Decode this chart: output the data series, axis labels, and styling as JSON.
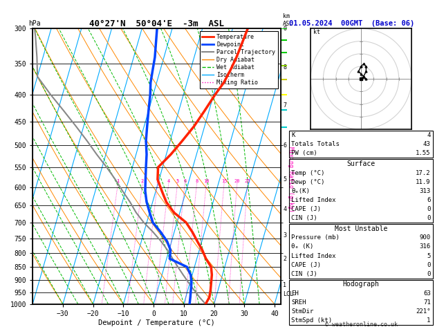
{
  "title": "40°27'N  50°04'E  -3m  ASL",
  "date_str": "01.05.2024  00GMT  (Base: 06)",
  "xlabel": "Dewpoint / Temperature (°C)",
  "pressure_levels": [
    300,
    350,
    400,
    450,
    500,
    550,
    600,
    650,
    700,
    750,
    800,
    850,
    900,
    950,
    1000
  ],
  "pmin": 300,
  "pmax": 1000,
  "temp_profile_p": [
    300,
    340,
    360,
    380,
    400,
    430,
    460,
    490,
    520,
    550,
    580,
    610,
    640,
    670,
    700,
    730,
    760,
    790,
    820,
    850,
    880,
    910,
    940,
    970,
    1000
  ],
  "temp_profile_t": [
    5.0,
    4.0,
    3.2,
    2.2,
    0.5,
    -1.5,
    -3.5,
    -6.0,
    -8.5,
    -11.5,
    -10.5,
    -8.0,
    -5.5,
    -2.0,
    3.0,
    6.0,
    8.5,
    11.0,
    13.0,
    15.5,
    16.5,
    17.0,
    17.5,
    17.8,
    17.2
  ],
  "dewp_profile_p": [
    300,
    340,
    360,
    380,
    400,
    430,
    460,
    490,
    520,
    550,
    580,
    610,
    640,
    670,
    700,
    730,
    760,
    790,
    820,
    850,
    880,
    910,
    940,
    970,
    1000
  ],
  "dewp_profile_t": [
    -25.0,
    -23.0,
    -22.5,
    -22.0,
    -21.0,
    -20.0,
    -19.0,
    -18.0,
    -16.5,
    -15.5,
    -14.5,
    -13.5,
    -12.0,
    -10.0,
    -8.0,
    -4.5,
    -1.5,
    0.5,
    1.0,
    7.5,
    9.5,
    10.5,
    11.0,
    11.5,
    11.9
  ],
  "parcel_profile_p": [
    1000,
    970,
    940,
    910,
    880,
    850,
    820,
    790,
    760,
    730,
    700,
    670,
    640,
    610,
    580,
    550,
    520,
    490,
    460,
    430,
    400,
    370,
    340,
    310,
    300
  ],
  "parcel_profile_t": [
    17.2,
    14.5,
    12.0,
    9.5,
    7.0,
    4.5,
    2.0,
    -0.5,
    -3.5,
    -7.0,
    -11.0,
    -14.5,
    -17.5,
    -21.0,
    -24.5,
    -28.5,
    -33.0,
    -37.5,
    -42.5,
    -48.0,
    -54.0,
    -60.0,
    -62.0,
    -64.5,
    -65.5
  ],
  "k_skew": 50.0,
  "isotherm_color": "#00AAFF",
  "dry_adiabat_color": "#FF8800",
  "wet_adiabat_color": "#00BB00",
  "mixing_ratio_color": "#FF00BB",
  "temp_color": "#FF2200",
  "dewp_color": "#0044FF",
  "parcel_color": "#888888",
  "km_labels": [
    [
      "0",
      300
    ],
    [
      "8",
      355
    ],
    [
      "7",
      420
    ],
    [
      "6",
      500
    ],
    [
      "5",
      580
    ],
    [
      "4",
      660
    ],
    [
      "3",
      740
    ],
    [
      "2",
      820
    ],
    [
      "1",
      920
    ]
  ],
  "lcl_p": 957,
  "mixing_ratio_values": [
    1,
    2,
    3,
    4,
    5,
    6,
    8,
    10,
    15,
    20,
    25
  ],
  "stats_k": "4",
  "stats_tt": "43",
  "stats_pw": "1.55",
  "surf_temp": "17.2",
  "surf_dewp": "11.9",
  "surf_thetae": "313",
  "surf_li": "6",
  "surf_cape": "0",
  "surf_cin": "0",
  "mu_pressure": "900",
  "mu_thetae": "316",
  "mu_li": "5",
  "mu_cape": "0",
  "mu_cin": "0",
  "eh": "63",
  "sreh": "71",
  "stmdir": "221°",
  "stmspd": "1",
  "hodo_u": [
    0,
    1,
    2,
    2,
    1,
    0,
    -1,
    0,
    1,
    2
  ],
  "hodo_v": [
    0,
    1,
    3,
    5,
    6,
    5,
    3,
    2,
    1,
    0
  ],
  "wind_p": [
    1000,
    950,
    900,
    850,
    800,
    750,
    700,
    650
  ],
  "wind_u": [
    1,
    1,
    2,
    2,
    1,
    -1,
    -3,
    -4
  ],
  "wind_v": [
    2,
    3,
    4,
    5,
    5,
    4,
    3,
    2
  ]
}
